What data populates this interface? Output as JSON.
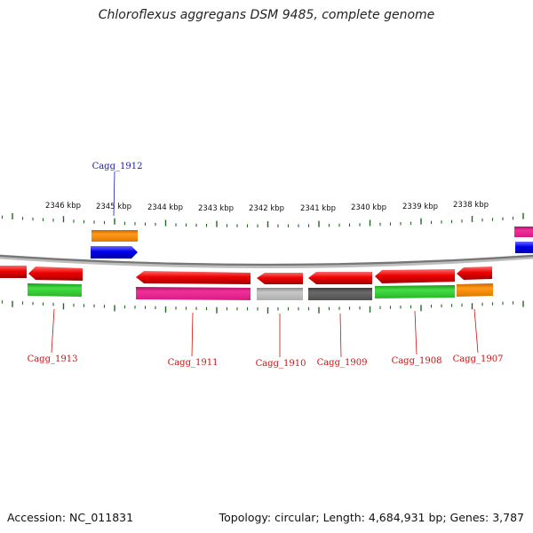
{
  "title": "Chloroflexus aggregans DSM 9485, complete genome",
  "footer": {
    "accession": "Accession: NC_011831",
    "stats": "Topology: circular; Length: 4,684,931 bp; Genes: 3,787"
  },
  "ticks": [
    {
      "id": "2346",
      "label": "2346 kbp"
    },
    {
      "id": "2345",
      "label": "2345 kbp"
    },
    {
      "id": "2344",
      "label": "2344 kbp"
    },
    {
      "id": "2343",
      "label": "2343 kbp"
    },
    {
      "id": "2342",
      "label": "2342 kbp"
    },
    {
      "id": "2341",
      "label": "2341 kbp"
    },
    {
      "id": "2340",
      "label": "2340 kbp"
    },
    {
      "id": "2339",
      "label": "2339 kbp"
    },
    {
      "id": "2338",
      "label": "2338 kbp"
    }
  ],
  "gene_labels": [
    {
      "id": "1912",
      "text": "Cagg_1912",
      "color": "#1a1aaa"
    },
    {
      "id": "1913",
      "text": "Cagg_1913",
      "color": "#cc1111"
    },
    {
      "id": "1911",
      "text": "Cagg_1911",
      "color": "#cc1111"
    },
    {
      "id": "1910",
      "text": "Cagg_1910",
      "color": "#cc1111"
    },
    {
      "id": "1909",
      "text": "Cagg_1909",
      "color": "#cc1111"
    },
    {
      "id": "1908",
      "text": "Cagg_1908",
      "color": "#cc1111"
    },
    {
      "id": "1907",
      "text": "Cagg_1907",
      "color": "#cc1111"
    }
  ],
  "colors": {
    "cds_forward_strand": "#0000ee",
    "cds_reverse_strand": "#ee0000",
    "orange": "#ff8c00",
    "magenta": "#e8208c",
    "green": "#33cc33",
    "gray_light": "#b5b5b5",
    "gray_dark": "#5a5a5a",
    "backbone": "#888888",
    "tick": "#226622"
  }
}
